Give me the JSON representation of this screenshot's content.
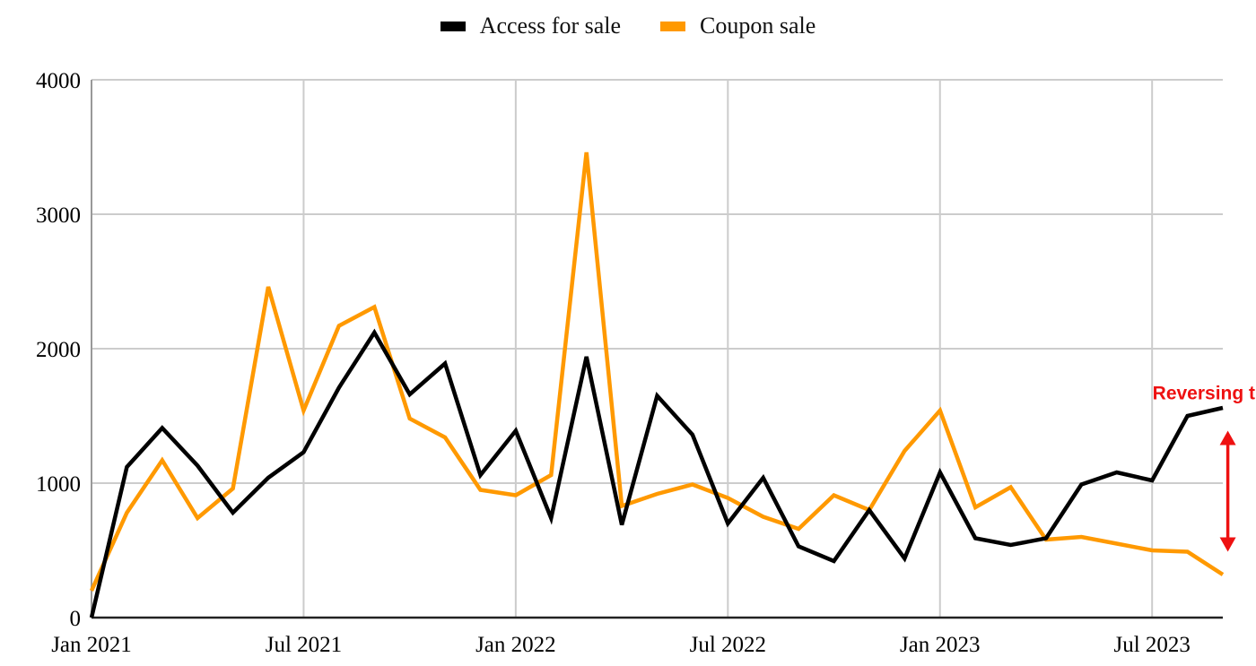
{
  "chart_data": {
    "type": "line",
    "title": "",
    "xlabel": "",
    "ylabel": "",
    "ylim": [
      0,
      4000
    ],
    "yticks": [
      "0",
      "1000",
      "2000",
      "3000",
      "4000"
    ],
    "xtick_labels": [
      "Jan 2021",
      "Jul 2021",
      "Jan 2022",
      "Jul 2022",
      "Jan 2023",
      "Jul 2023"
    ],
    "x": [
      "2021-01",
      "2021-02",
      "2021-03",
      "2021-04",
      "2021-05",
      "2021-06",
      "2021-07",
      "2021-08",
      "2021-09",
      "2021-10",
      "2021-11",
      "2021-12",
      "2022-01",
      "2022-02",
      "2022-03",
      "2022-04",
      "2022-05",
      "2022-06",
      "2022-07",
      "2022-08",
      "2022-09",
      "2022-10",
      "2022-11",
      "2022-12",
      "2023-01",
      "2023-02",
      "2023-03",
      "2023-04",
      "2023-05",
      "2023-06",
      "2023-07",
      "2023-08",
      "2023-09"
    ],
    "grid": true,
    "legend_position": "top-center",
    "series": [
      {
        "name": "Access for sale",
        "color": "#000000",
        "values": [
          0,
          1120,
          1410,
          1130,
          780,
          1040,
          1230,
          1710,
          2120,
          1660,
          1890,
          1060,
          1390,
          740,
          1940,
          690,
          1650,
          1360,
          700,
          1040,
          530,
          420,
          800,
          440,
          1080,
          590,
          540,
          590,
          990,
          1080,
          1020,
          1500,
          1560
        ]
      },
      {
        "name": "Coupon sale",
        "color": "#ff9900",
        "values": [
          200,
          780,
          1170,
          740,
          960,
          2460,
          1540,
          2170,
          2310,
          1480,
          1340,
          950,
          910,
          1060,
          3460,
          830,
          920,
          990,
          890,
          750,
          660,
          910,
          800,
          1240,
          1540,
          820,
          970,
          580,
          600,
          550,
          500,
          490,
          320
        ]
      }
    ],
    "annotations": [
      {
        "text": "Reversing trend!!",
        "color": "#ee1111",
        "arrow_x": "2023-08",
        "arrow_from": 490,
        "arrow_to": 1390
      }
    ]
  }
}
